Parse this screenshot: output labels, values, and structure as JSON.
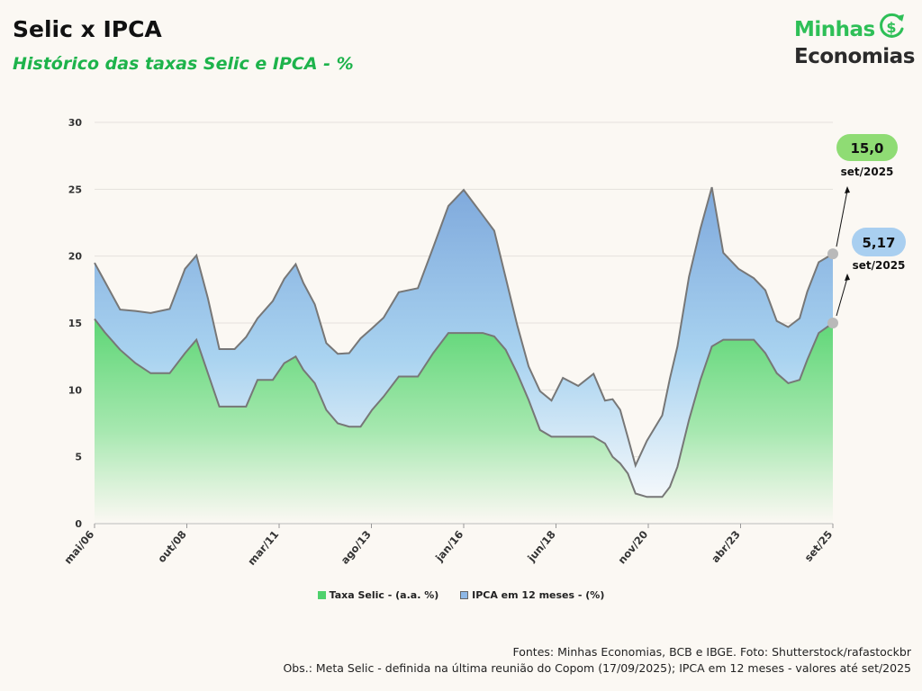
{
  "title": "Selic x IPCA",
  "subtitle": "Histórico das taxas Selic e IPCA - %",
  "logo": {
    "line1": "Minhas",
    "line2": "Economias"
  },
  "legend": {
    "selic": "Taxa Selic - (a.a. %)",
    "ipca": "IPCA em 12 meses - (%)"
  },
  "callouts": {
    "selic": {
      "value": "15,0",
      "date": "set/2025",
      "color": "#8fdc74"
    },
    "ipca": {
      "value": "5,17",
      "date": "set/2025",
      "color": "#a9cff0"
    }
  },
  "footer": {
    "line1": "Fontes: Minhas Economias, BCB e IBGE. Foto: Shutterstock/rafastockbr",
    "line2": "Obs.: Meta Selic - definida na última reunião do Copom (17/09/2025); IPCA em 12 meses - valores até set/2025"
  },
  "colors": {
    "green": "#4fd16c",
    "blue": "#8eb8e6",
    "accent": "#1db34b"
  },
  "chart_data": {
    "type": "area",
    "title": "Selic x IPCA",
    "ylim": [
      0,
      30
    ],
    "yticks": [
      0,
      5,
      10,
      15,
      20,
      25,
      30
    ],
    "xticks": [
      "mai/06",
      "out/08",
      "mar/11",
      "ago/13",
      "jan/16",
      "jun/18",
      "nov/20",
      "abr/23",
      "set/25"
    ],
    "x_start": 2006.33,
    "x_end": 2025.67,
    "stacked": true,
    "series": [
      {
        "name": "Taxa Selic - (a.a. %)",
        "x": [
          2006.33,
          2006.6,
          2007.0,
          2007.4,
          2007.8,
          2008.3,
          2008.7,
          2009.0,
          2009.3,
          2009.6,
          2010.0,
          2010.3,
          2010.6,
          2011.0,
          2011.3,
          2011.6,
          2011.8,
          2012.1,
          2012.4,
          2012.7,
          2013.0,
          2013.3,
          2013.6,
          2013.9,
          2014.3,
          2014.8,
          2015.2,
          2015.6,
          2016.0,
          2016.5,
          2016.8,
          2017.1,
          2017.4,
          2017.7,
          2018.0,
          2018.3,
          2018.6,
          2019.0,
          2019.4,
          2019.7,
          2019.9,
          2020.1,
          2020.3,
          2020.5,
          2020.8,
          2021.2,
          2021.4,
          2021.6,
          2021.9,
          2022.2,
          2022.5,
          2022.8,
          2023.2,
          2023.6,
          2023.9,
          2024.2,
          2024.5,
          2024.8,
          2025.0,
          2025.3,
          2025.67
        ],
        "values": [
          15.3,
          14.3,
          13.0,
          12.0,
          11.25,
          11.25,
          12.75,
          13.75,
          11.25,
          8.75,
          8.75,
          8.75,
          10.75,
          10.75,
          12.0,
          12.5,
          11.5,
          10.5,
          8.5,
          7.5,
          7.25,
          7.25,
          8.5,
          9.5,
          11.0,
          11.0,
          12.75,
          14.25,
          14.25,
          14.25,
          14.0,
          13.0,
          11.25,
          9.25,
          7.0,
          6.5,
          6.5,
          6.5,
          6.5,
          6.0,
          5.0,
          4.5,
          3.75,
          2.25,
          2.0,
          2.0,
          2.75,
          4.25,
          7.75,
          10.75,
          13.25,
          13.75,
          13.75,
          13.75,
          12.75,
          11.25,
          10.5,
          10.75,
          12.25,
          14.25,
          15.0
        ]
      },
      {
        "name": "IPCA em 12 meses - (%)",
        "x": [
          2006.33,
          2006.6,
          2007.0,
          2007.4,
          2007.8,
          2008.3,
          2008.7,
          2009.0,
          2009.3,
          2009.6,
          2010.0,
          2010.3,
          2010.6,
          2011.0,
          2011.3,
          2011.6,
          2011.8,
          2012.1,
          2012.4,
          2012.7,
          2013.0,
          2013.3,
          2013.6,
          2013.9,
          2014.3,
          2014.8,
          2015.2,
          2015.6,
          2016.0,
          2016.5,
          2016.8,
          2017.1,
          2017.4,
          2017.7,
          2018.0,
          2018.3,
          2018.6,
          2019.0,
          2019.4,
          2019.7,
          2019.9,
          2020.1,
          2020.3,
          2020.5,
          2020.8,
          2021.2,
          2021.4,
          2021.6,
          2021.9,
          2022.2,
          2022.5,
          2022.8,
          2023.2,
          2023.6,
          2023.9,
          2024.2,
          2024.5,
          2024.8,
          2025.0,
          2025.3,
          2025.67
        ],
        "values": [
          4.2,
          3.8,
          3.0,
          3.9,
          4.5,
          4.8,
          6.3,
          6.3,
          5.6,
          4.3,
          4.3,
          5.2,
          4.6,
          5.9,
          6.3,
          6.9,
          6.5,
          5.9,
          5.0,
          5.2,
          5.5,
          6.6,
          6.1,
          5.9,
          6.3,
          6.6,
          7.9,
          9.5,
          10.7,
          8.8,
          7.9,
          5.4,
          3.6,
          2.5,
          2.9,
          2.7,
          4.4,
          3.8,
          4.7,
          3.2,
          4.3,
          4.0,
          2.7,
          2.1,
          4.2,
          6.1,
          8.1,
          9.0,
          10.7,
          11.3,
          11.9,
          6.5,
          5.3,
          4.6,
          4.7,
          3.9,
          4.2,
          4.6,
          5.1,
          5.3,
          5.17
        ]
      }
    ]
  }
}
